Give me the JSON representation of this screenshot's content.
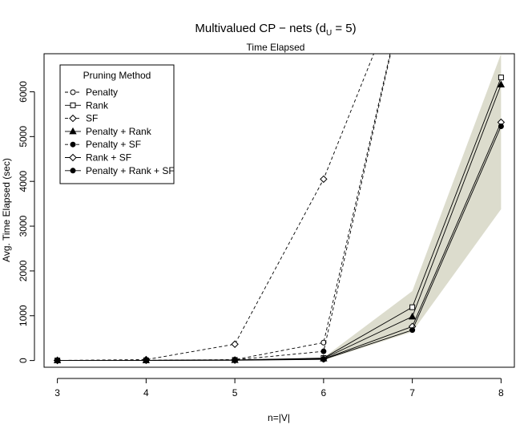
{
  "chart_data": {
    "type": "line",
    "title_main": "Multivalued CP − nets (d",
    "title_sub": "U",
    "title_tail": " = 5)",
    "subtitle": "Time Elapsed",
    "xlabel": "n=|V|",
    "ylabel": "Avg. Time Elapsed (sec)",
    "x": [
      3,
      4,
      5,
      6,
      7,
      8
    ],
    "xlim": [
      2.85,
      8.15
    ],
    "ylim": [
      -150,
      6850
    ],
    "yticks": [
      0,
      1000,
      2000,
      3000,
      4000,
      5000,
      6000
    ],
    "grid": false,
    "legend": {
      "title": "Pruning Method",
      "placement": "top-left"
    },
    "band": {
      "x": [
        6,
        7,
        8
      ],
      "lower": [
        5,
        640,
        3380
      ],
      "upper": [
        65,
        1550,
        6850
      ]
    },
    "series": [
      {
        "name": "Penalty",
        "marker": "open-circle",
        "dash": "dashed",
        "values": [
          2,
          5,
          20,
          400,
          9000,
          null
        ]
      },
      {
        "name": "Rank",
        "marker": "open-square",
        "dash": "solid",
        "values": [
          2,
          4,
          12,
          55,
          1190,
          6320
        ]
      },
      {
        "name": "SF",
        "marker": "open-diamond",
        "dash": "dashed",
        "values": [
          2,
          20,
          365,
          4050,
          9000,
          null
        ]
      },
      {
        "name": "Penalty + Rank",
        "marker": "filled-triangle",
        "dash": "solid",
        "values": [
          2,
          4,
          10,
          45,
          980,
          6160
        ]
      },
      {
        "name": "Penalty + SF",
        "marker": "filled-circle",
        "dash": "dashed",
        "values": [
          2,
          4,
          15,
          205,
          9000,
          null
        ]
      },
      {
        "name": "Rank + SF",
        "marker": "open-diamond",
        "dash": "solid",
        "values": [
          2,
          4,
          8,
          35,
          760,
          5320
        ]
      },
      {
        "name": "Penalty + Rank + SF",
        "marker": "filled-circle",
        "dash": "solid",
        "values": [
          2,
          3,
          6,
          25,
          680,
          5230
        ]
      }
    ]
  }
}
